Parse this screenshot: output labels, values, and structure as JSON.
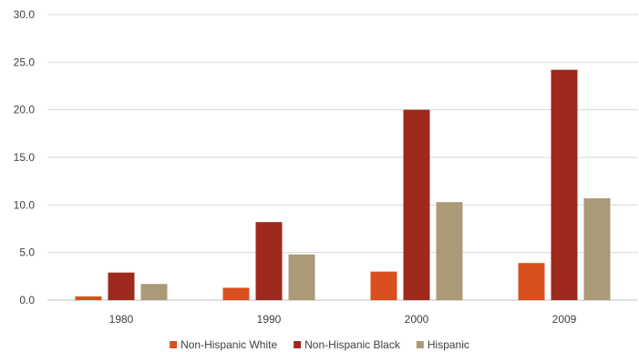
{
  "chart_data": {
    "type": "bar",
    "categories": [
      "1980",
      "1990",
      "2000",
      "2009"
    ],
    "series": [
      {
        "name": "Non-Hispanic White",
        "color": "#d9501e",
        "values": [
          0.4,
          1.3,
          3.0,
          3.9
        ]
      },
      {
        "name": "Non-Hispanic Black",
        "color": "#9e2a1d",
        "values": [
          2.9,
          8.2,
          20.0,
          24.2
        ]
      },
      {
        "name": "Hispanic",
        "color": "#ab9a78",
        "values": [
          1.7,
          4.8,
          10.3,
          10.7
        ]
      }
    ],
    "ylim": [
      0,
      30
    ],
    "y_ticks": [
      "0.0",
      "5.0",
      "10.0",
      "15.0",
      "20.0",
      "25.0",
      "30.0"
    ],
    "grid": "horizontal",
    "legend_position": "bottom",
    "title": "",
    "xlabel": "",
    "ylabel": ""
  }
}
